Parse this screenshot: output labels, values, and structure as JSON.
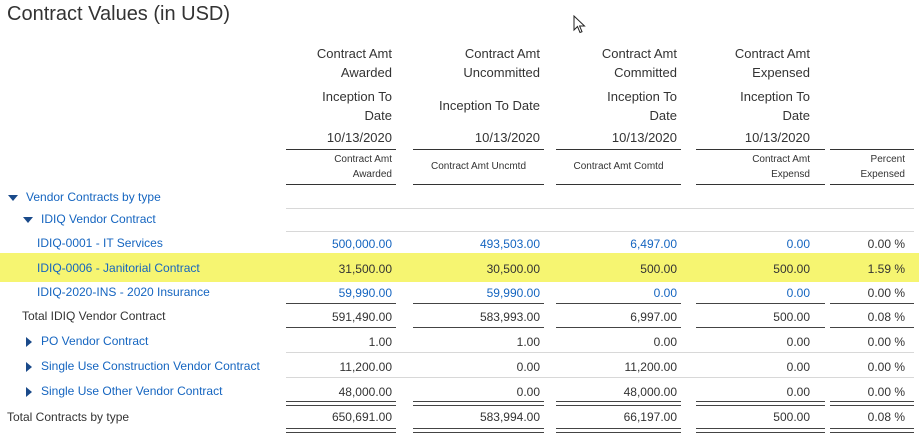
{
  "title": "Contract Values (in USD)",
  "columns": [
    {
      "h1a": "Contract Amt",
      "h1b": "Awarded",
      "h2a": "Inception To",
      "h2b": "Date",
      "date": "10/13/2020",
      "sub_a": "Contract Amt",
      "sub_b": "Awarded"
    },
    {
      "h1a": "Contract Amt",
      "h1b": "Uncommitted",
      "h2a": "Inception To Date",
      "h2b": "",
      "date": "10/13/2020",
      "sub_a": "Contract Amt Uncmtd",
      "sub_b": ""
    },
    {
      "h1a": "Contract Amt",
      "h1b": "Committed",
      "h2a": "Inception To",
      "h2b": "Date",
      "date": "10/13/2020",
      "sub_a": "Contract Amt Comtd",
      "sub_b": ""
    },
    {
      "h1a": "Contract Amt",
      "h1b": "Expensed",
      "h2a": "Inception To",
      "h2b": "Date",
      "date": "10/13/2020",
      "sub_a": "Contract Amt",
      "sub_b": "Expensd"
    },
    {
      "sub_a": "Percent",
      "sub_b": "Expensed"
    }
  ],
  "rows": [
    {
      "label": "Vendor Contracts by type",
      "values": [
        "",
        "",
        "",
        "",
        ""
      ]
    },
    {
      "label": "IDIQ Vendor Contract",
      "values": [
        "",
        "",
        "",
        "",
        ""
      ]
    },
    {
      "label": "IDIQ-0001 - IT Services",
      "values": [
        "500,000.00",
        "493,503.00",
        "6,497.00",
        "0.00",
        "0.00 %"
      ]
    },
    {
      "label": "IDIQ-0006 - Janitorial Contract",
      "values": [
        "31,500.00",
        "30,500.00",
        "500.00",
        "500.00",
        "1.59 %"
      ]
    },
    {
      "label": "IDIQ-2020-INS - 2020 Insurance",
      "values": [
        "59,990.00",
        "59,990.00",
        "0.00",
        "0.00",
        "0.00 %"
      ]
    },
    {
      "label": "Total IDIQ Vendor Contract",
      "values": [
        "591,490.00",
        "583,993.00",
        "6,997.00",
        "500.00",
        "0.08 %"
      ]
    },
    {
      "label": "PO Vendor Contract",
      "values": [
        "1.00",
        "1.00",
        "0.00",
        "0.00",
        "0.00 %"
      ]
    },
    {
      "label": "Single Use Construction Vendor Contract",
      "values": [
        "11,200.00",
        "0.00",
        "11,200.00",
        "0.00",
        "0.00 %"
      ]
    },
    {
      "label": "Single Use Other Vendor Contract",
      "values": [
        "48,000.00",
        "0.00",
        "48,000.00",
        "0.00",
        "0.00 %"
      ]
    },
    {
      "label": "Total Contracts by type",
      "values": [
        "650,691.00",
        "583,994.00",
        "66,197.00",
        "500.00",
        "0.08 %"
      ]
    }
  ],
  "colors": {
    "link": "#1565c0",
    "highlight": "#f6f571",
    "text": "#333333"
  },
  "icons": {
    "expanded": "triangle-down-icon",
    "collapsed": "triangle-right-icon",
    "cursor": "mouse-pointer-icon"
  }
}
